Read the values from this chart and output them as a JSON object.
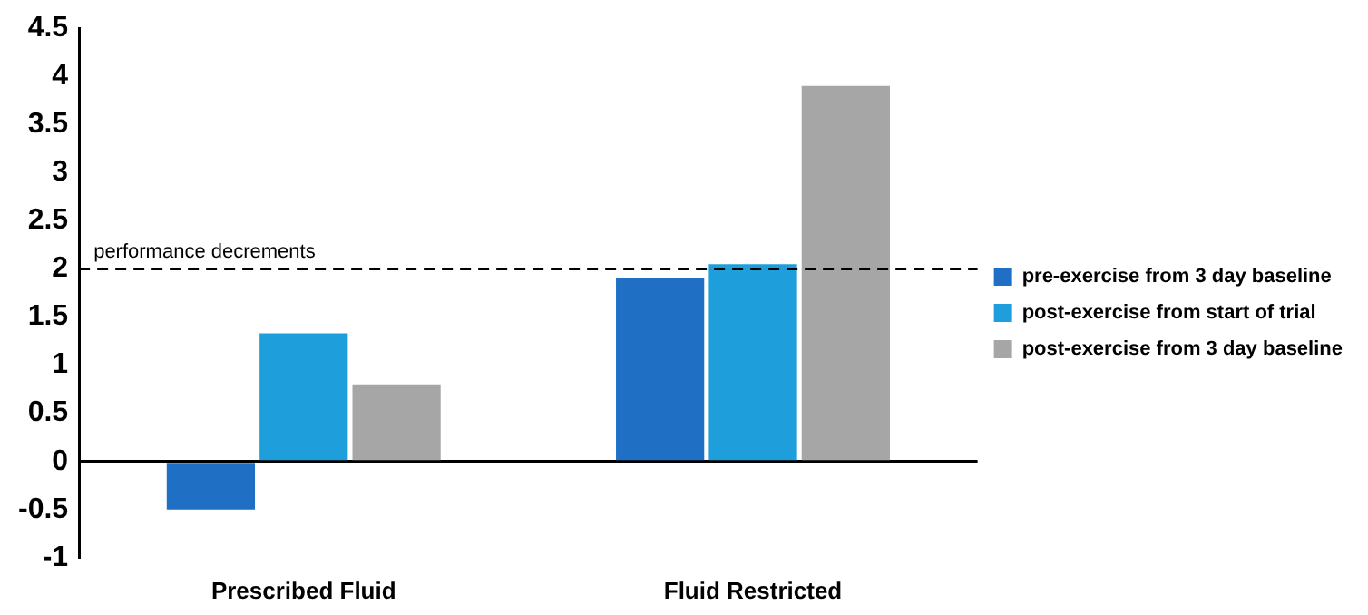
{
  "chart_data": {
    "type": "bar",
    "categories": [
      "Prescribed Fluid",
      "Fluid Restricted"
    ],
    "series": [
      {
        "name": "pre-exercise from 3 day baseline",
        "color": "#1f6fc5",
        "values": [
          -0.5,
          1.9
        ]
      },
      {
        "name": "post-exercise from start of trial",
        "color": "#1e9fdb",
        "values": [
          1.33,
          2.05
        ]
      },
      {
        "name": "post-exercise from 3 day baseline",
        "color": "#a6a6a6",
        "values": [
          0.8,
          3.9
        ]
      }
    ],
    "ylim": [
      -1,
      4.5
    ],
    "yticks": [
      -1,
      -0.5,
      0,
      0.5,
      1,
      1.5,
      2,
      2.5,
      3,
      3.5,
      4,
      4.5
    ],
    "ref_lines": [
      {
        "axis": "y",
        "value": 2,
        "label": "performance decrements",
        "line_style": "dashed",
        "color": "#000000"
      }
    ],
    "legend": "right",
    "grid": false
  }
}
